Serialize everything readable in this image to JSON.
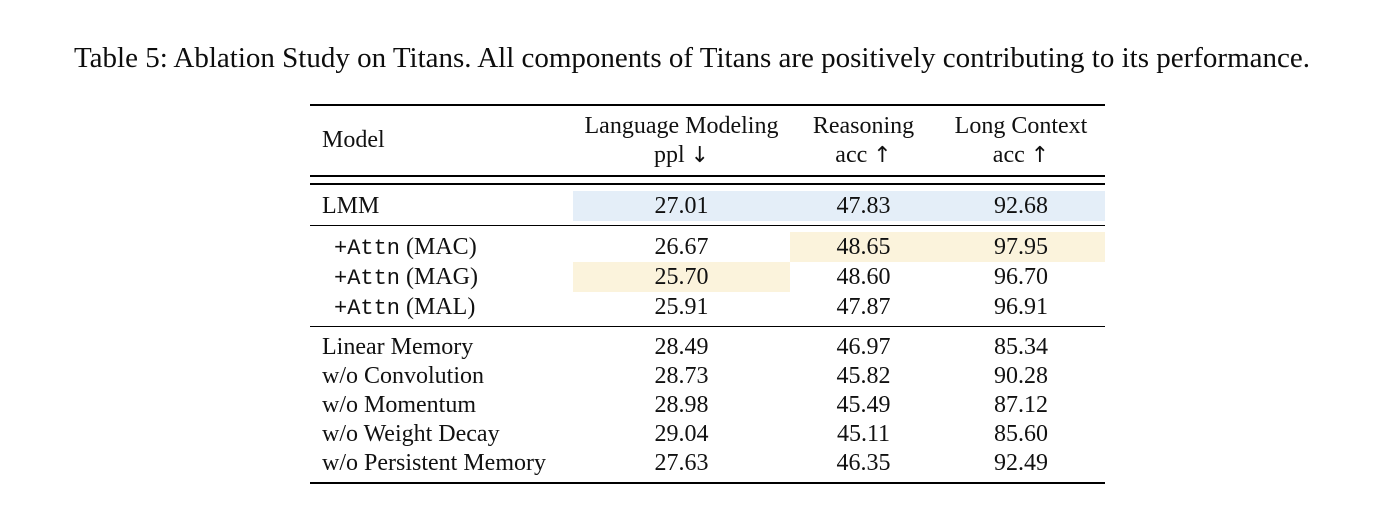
{
  "caption": "Table 5: Ablation Study on Titans. All components of Titans are positively contributing to its performance.",
  "colors": {
    "highlight_blue": "#e4eef8",
    "highlight_cream": "#fbf3dc",
    "rule": "#000000",
    "text": "#111111"
  },
  "table": {
    "columns": [
      {
        "line1": "Model",
        "line2": "",
        "arrow": ""
      },
      {
        "line1": "Language Modeling",
        "line2": "ppl",
        "arrow": "↓"
      },
      {
        "line1": "Reasoning",
        "line2": "acc",
        "arrow": "↑"
      },
      {
        "line1": "Long Context",
        "line2": "acc",
        "arrow": "↑"
      }
    ],
    "rows": [
      {
        "label_mono": "",
        "label": "LMM",
        "values": [
          "27.01",
          "47.83",
          "92.68"
        ],
        "highlights": [
          {
            "col": 1,
            "color": "highlight_blue"
          },
          {
            "col": 2,
            "color": "highlight_blue"
          },
          {
            "col": 3,
            "color": "highlight_blue"
          }
        ]
      },
      {
        "label_mono": "+Attn",
        "label": " (MAC)",
        "values": [
          "26.67",
          "48.65",
          "97.95"
        ],
        "highlights": [
          {
            "col": 2,
            "color": "highlight_cream"
          },
          {
            "col": 3,
            "color": "highlight_cream"
          }
        ]
      },
      {
        "label_mono": "+Attn",
        "label": " (MAG)",
        "values": [
          "25.70",
          "48.60",
          "96.70"
        ],
        "highlights": [
          {
            "col": 1,
            "color": "highlight_cream"
          }
        ]
      },
      {
        "label_mono": "+Attn",
        "label": " (MAL)",
        "values": [
          "25.91",
          "47.87",
          "96.91"
        ],
        "highlights": []
      },
      {
        "label_mono": "",
        "label": "Linear Memory",
        "values": [
          "28.49",
          "46.97",
          "85.34"
        ],
        "highlights": []
      },
      {
        "label_mono": "",
        "label": "w/o Convolution",
        "values": [
          "28.73",
          "45.82",
          "90.28"
        ],
        "highlights": []
      },
      {
        "label_mono": "",
        "label": "w/o Momentum",
        "values": [
          "28.98",
          "45.49",
          "87.12"
        ],
        "highlights": []
      },
      {
        "label_mono": "",
        "label": "w/o Weight Decay",
        "values": [
          "29.04",
          "45.11",
          "85.60"
        ],
        "highlights": []
      },
      {
        "label_mono": "",
        "label": "w/o Persistent Memory",
        "values": [
          "27.63",
          "46.35",
          "92.49"
        ],
        "highlights": []
      }
    ]
  }
}
